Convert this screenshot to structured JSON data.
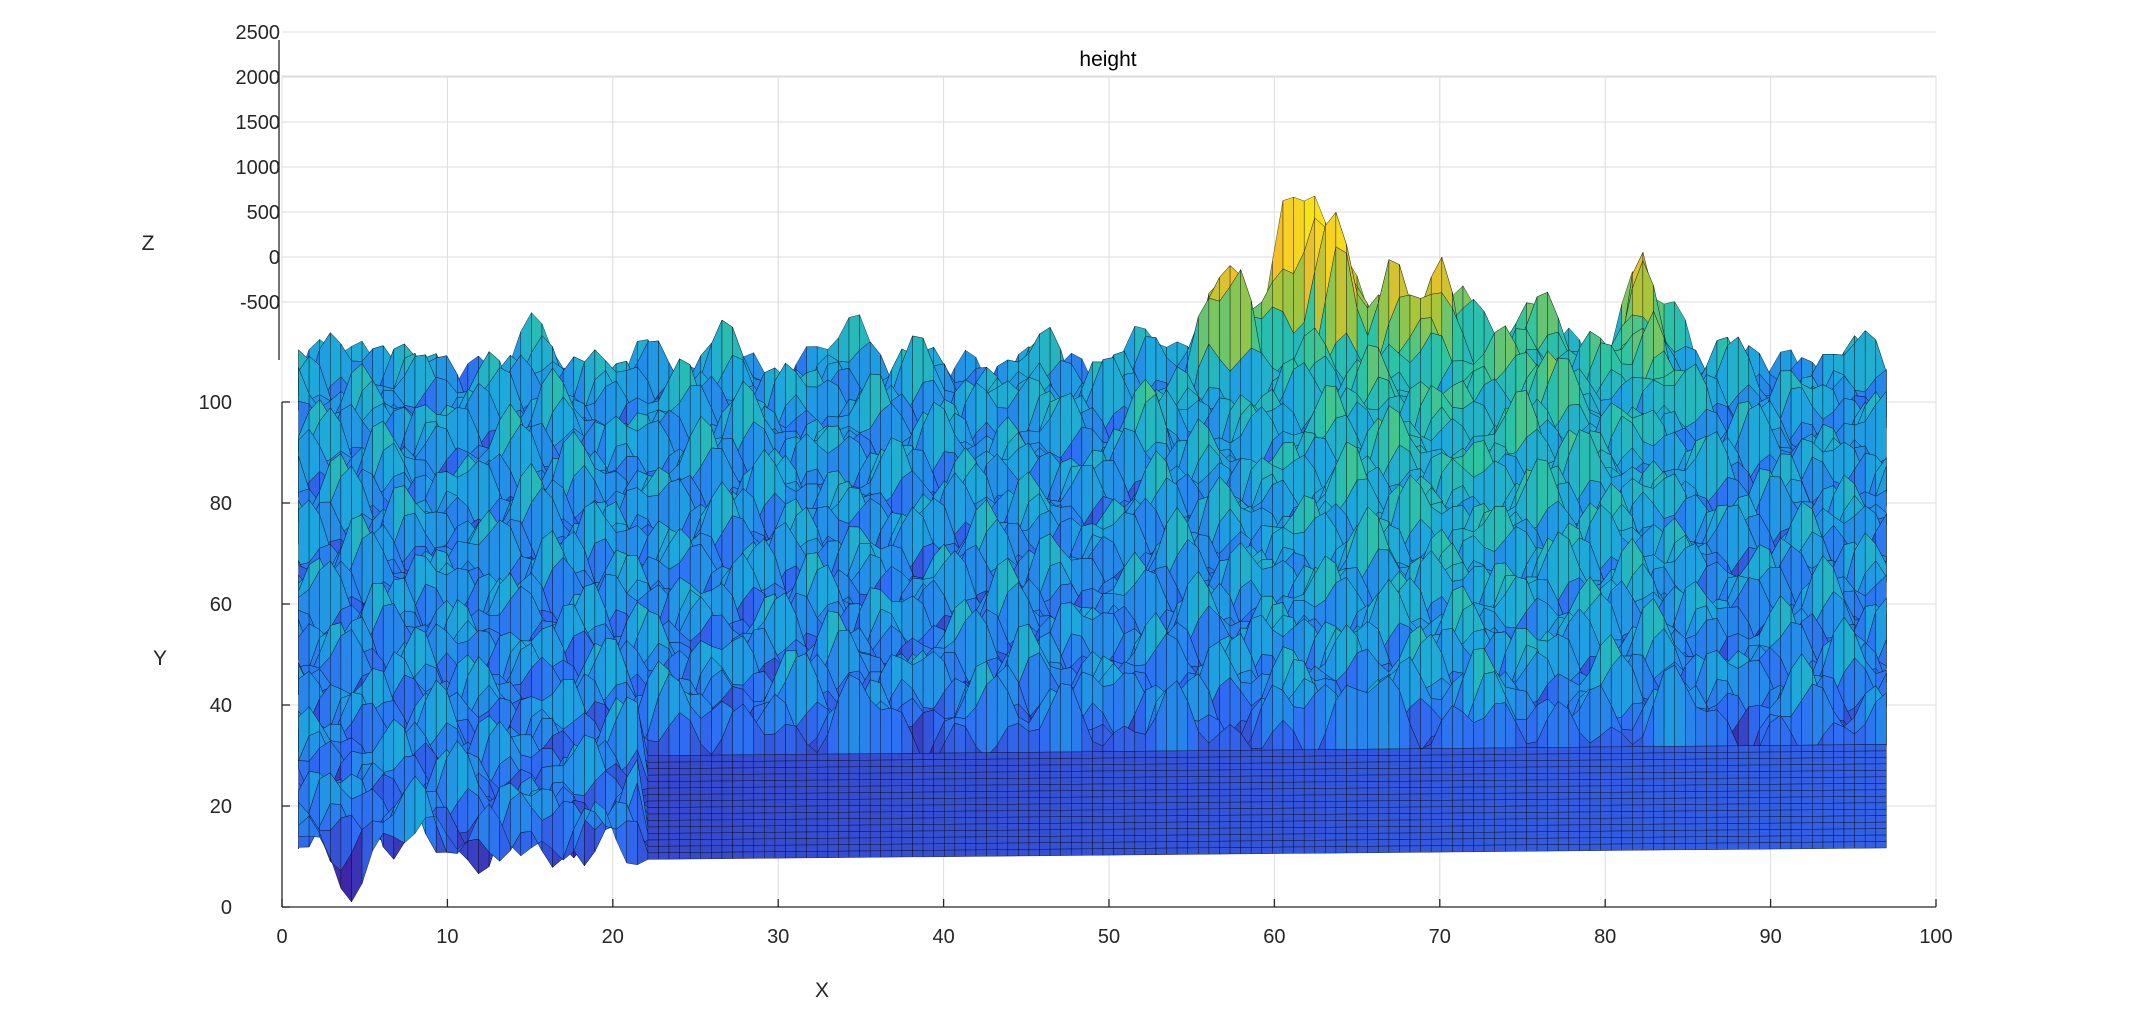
{
  "chart_data": {
    "type": "surface",
    "title": "height",
    "xlabel": "X",
    "ylabel": "Y",
    "zlabel": "Z",
    "xlim": [
      0,
      100
    ],
    "ylim": [
      0,
      100
    ],
    "zlim": [
      -500,
      2500
    ],
    "x_ticks": [
      "0",
      "10",
      "20",
      "30",
      "40",
      "50",
      "60",
      "70",
      "80",
      "90",
      "100"
    ],
    "y_ticks": [
      "0",
      "20",
      "40",
      "60",
      "80",
      "100"
    ],
    "z_ticks": [
      "-500",
      "0",
      "500",
      "1000",
      "1500",
      "2000",
      "2500"
    ],
    "grid": true,
    "colormap": [
      "#3e26a8",
      "#2f6df4",
      "#1ca7de",
      "#2ec4a2",
      "#a6c53b",
      "#f5c02b",
      "#f9e21c"
    ],
    "mesh_color": "#000000",
    "surface_x_range": [
      1,
      97
    ],
    "surface_y_range": [
      12,
      100
    ],
    "peaks": [
      {
        "x": 60.5,
        "y": 100,
        "z": 1000
      },
      {
        "x": 62.5,
        "y": 100,
        "z": 950
      },
      {
        "x": 56,
        "y": 96,
        "z": 650
      },
      {
        "x": 58,
        "y": 96,
        "z": 600
      },
      {
        "x": 64,
        "y": 97,
        "z": 700
      },
      {
        "x": 67,
        "y": 96,
        "z": 550
      },
      {
        "x": 70,
        "y": 96,
        "z": 560
      },
      {
        "x": 82,
        "y": 98,
        "z": 680
      },
      {
        "x": 83,
        "y": 92,
        "z": 540
      },
      {
        "x": 46,
        "y": 92,
        "z": 450
      },
      {
        "x": 53,
        "y": 85,
        "z": 430
      },
      {
        "x": 76,
        "y": 90,
        "z": 400
      }
    ]
  }
}
